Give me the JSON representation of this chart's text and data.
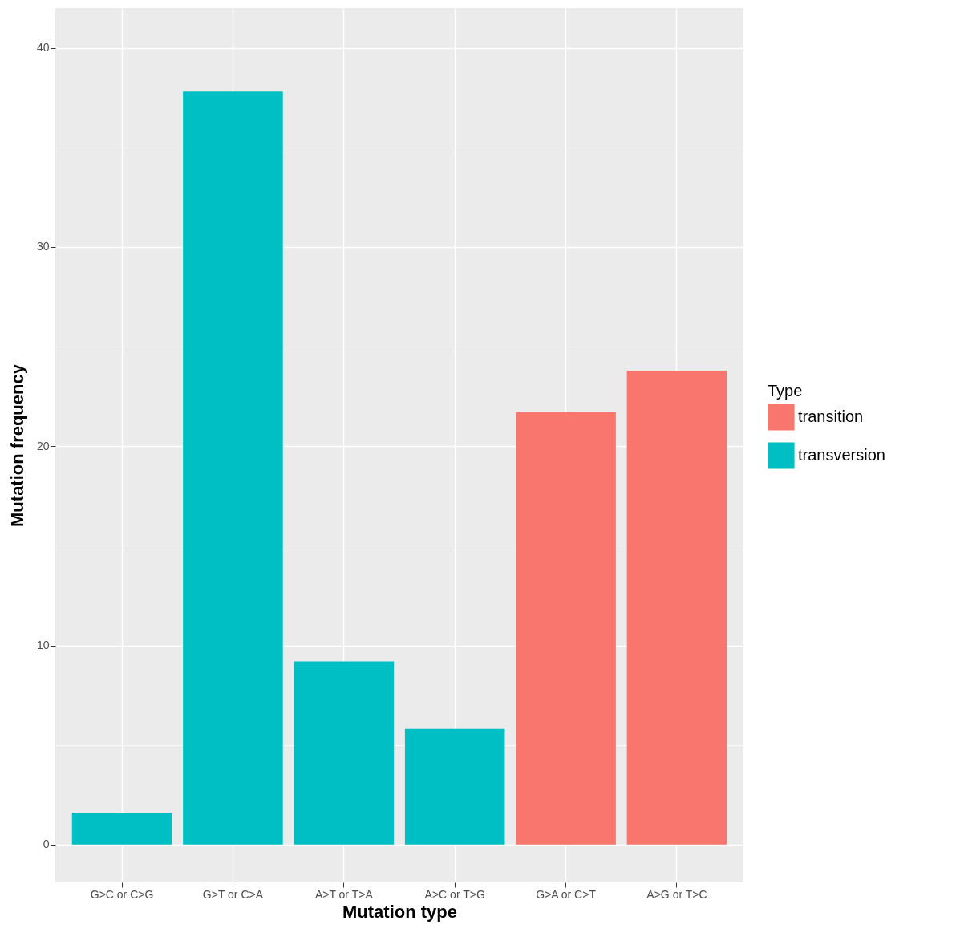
{
  "chart_data": {
    "type": "bar",
    "xlabel": "Mutation type",
    "ylabel": "Mutation frequency",
    "legend_title": "Type",
    "categories": [
      "G>C or C>G",
      "G>T or C>A",
      "A>T or T>A",
      "A>C or T>G",
      "G>A or C>T",
      "A>G or T>C"
    ],
    "series": [
      {
        "name": "transition",
        "color": "#f8766d",
        "values": [
          null,
          null,
          null,
          null,
          21.7,
          23.8
        ]
      },
      {
        "name": "transversion",
        "color": "#00bfc4",
        "values": [
          1.6,
          37.8,
          9.2,
          5.8,
          null,
          null
        ]
      }
    ],
    "ylim": [
      -1.9,
      42
    ],
    "yticks": [
      0,
      {
        "value": 5,
        "label": null
      },
      10,
      {
        "value": 15,
        "label": null
      },
      20,
      {
        "value": 25,
        "label": null
      },
      30,
      {
        "value": 35,
        "label": null
      },
      40
    ],
    "grid": true,
    "legend": "right"
  }
}
